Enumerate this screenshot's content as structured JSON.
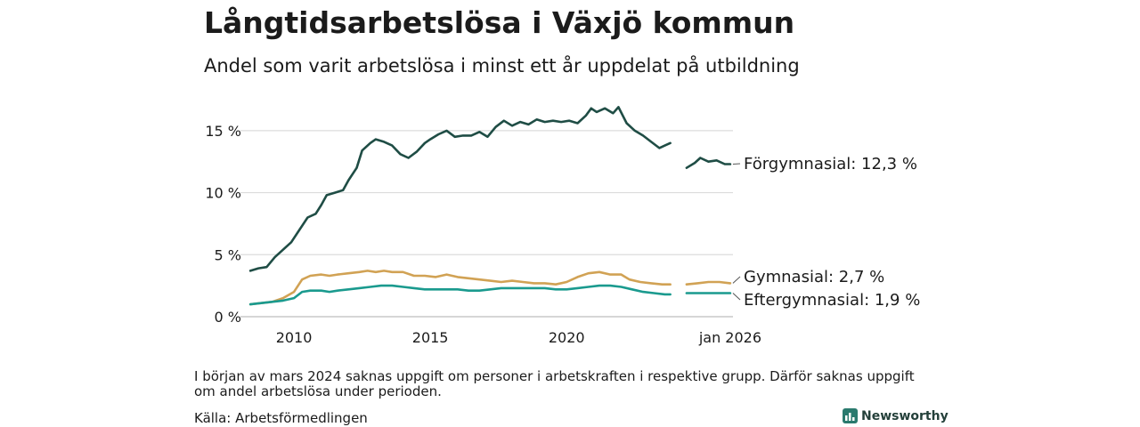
{
  "header": {
    "title": "Långtidsarbetslösa i Växjö kommun",
    "subtitle": "Andel som varit arbetslösa i minst ett år uppdelat på utbildning"
  },
  "footer": {
    "note": "I början av mars 2024 saknas uppgift om personer i arbetskraften i respektive grupp. Därför saknas uppgift om andel arbetslösa under perioden.",
    "source": "Källa: Arbetsförmedlingen",
    "brand": "Newsworthy",
    "brand_icon": "newsworthy-logo-icon"
  },
  "chart_data": {
    "type": "line",
    "title": "Långtidsarbetslösa i Växjö kommun",
    "subtitle": "Andel som varit arbetslösa i minst ett år uppdelat på utbildning",
    "xlabel": "",
    "ylabel": "",
    "xlim": [
      2008.3,
      2026.1
    ],
    "ylim": [
      0,
      17.5
    ],
    "x_ticks": [
      {
        "value": 2010,
        "label": "2010"
      },
      {
        "value": 2015,
        "label": "2015"
      },
      {
        "value": 2020,
        "label": "2020"
      },
      {
        "value": 2026.0,
        "label": "jan 2026"
      }
    ],
    "y_ticks": [
      {
        "value": 0,
        "label": "0 %"
      },
      {
        "value": 5,
        "label": "5 %"
      },
      {
        "value": 10,
        "label": "10 %"
      },
      {
        "value": 15,
        "label": "15 %"
      }
    ],
    "gap": [
      2023.85,
      2024.35
    ],
    "grid": true,
    "series": [
      {
        "name": "Förgymnasial",
        "end_label": "Förgymnasial: 12,3 %",
        "color": "#1f4d45",
        "points": [
          [
            2008.4,
            3.7
          ],
          [
            2008.7,
            3.9
          ],
          [
            2009.0,
            4.0
          ],
          [
            2009.3,
            4.8
          ],
          [
            2009.6,
            5.4
          ],
          [
            2009.9,
            6.0
          ],
          [
            2010.2,
            7.0
          ],
          [
            2010.5,
            8.0
          ],
          [
            2010.8,
            8.3
          ],
          [
            2011.0,
            9.0
          ],
          [
            2011.2,
            9.8
          ],
          [
            2011.5,
            10.0
          ],
          [
            2011.8,
            10.2
          ],
          [
            2012.0,
            11.0
          ],
          [
            2012.3,
            12.0
          ],
          [
            2012.5,
            13.4
          ],
          [
            2012.8,
            14.0
          ],
          [
            2013.0,
            14.3
          ],
          [
            2013.3,
            14.1
          ],
          [
            2013.6,
            13.8
          ],
          [
            2013.9,
            13.1
          ],
          [
            2014.2,
            12.8
          ],
          [
            2014.5,
            13.3
          ],
          [
            2014.8,
            14.0
          ],
          [
            2015.0,
            14.3
          ],
          [
            2015.3,
            14.7
          ],
          [
            2015.6,
            15.0
          ],
          [
            2015.9,
            14.5
          ],
          [
            2016.2,
            14.6
          ],
          [
            2016.5,
            14.6
          ],
          [
            2016.8,
            14.9
          ],
          [
            2017.1,
            14.5
          ],
          [
            2017.4,
            15.3
          ],
          [
            2017.7,
            15.8
          ],
          [
            2018.0,
            15.4
          ],
          [
            2018.3,
            15.7
          ],
          [
            2018.6,
            15.5
          ],
          [
            2018.9,
            15.9
          ],
          [
            2019.2,
            15.7
          ],
          [
            2019.5,
            15.8
          ],
          [
            2019.8,
            15.7
          ],
          [
            2020.1,
            15.8
          ],
          [
            2020.4,
            15.6
          ],
          [
            2020.7,
            16.2
          ],
          [
            2020.9,
            16.8
          ],
          [
            2021.1,
            16.5
          ],
          [
            2021.4,
            16.8
          ],
          [
            2021.7,
            16.4
          ],
          [
            2021.9,
            16.9
          ],
          [
            2022.2,
            15.6
          ],
          [
            2022.5,
            15.0
          ],
          [
            2022.8,
            14.6
          ],
          [
            2023.1,
            14.1
          ],
          [
            2023.4,
            13.6
          ],
          [
            2023.6,
            13.8
          ],
          [
            2023.8,
            14.0
          ],
          [
            2024.4,
            12.0
          ],
          [
            2024.7,
            12.4
          ],
          [
            2024.9,
            12.8
          ],
          [
            2025.2,
            12.5
          ],
          [
            2025.5,
            12.6
          ],
          [
            2025.8,
            12.3
          ],
          [
            2026.0,
            12.3
          ]
        ]
      },
      {
        "name": "Gymnasial",
        "end_label": "Gymnasial:  2,7 %",
        "color": "#d1a254",
        "points": [
          [
            2008.4,
            1.0
          ],
          [
            2008.8,
            1.1
          ],
          [
            2009.2,
            1.2
          ],
          [
            2009.6,
            1.5
          ],
          [
            2010.0,
            2.0
          ],
          [
            2010.3,
            3.0
          ],
          [
            2010.6,
            3.3
          ],
          [
            2011.0,
            3.4
          ],
          [
            2011.3,
            3.3
          ],
          [
            2011.6,
            3.4
          ],
          [
            2012.0,
            3.5
          ],
          [
            2012.4,
            3.6
          ],
          [
            2012.7,
            3.7
          ],
          [
            2013.0,
            3.6
          ],
          [
            2013.3,
            3.7
          ],
          [
            2013.6,
            3.6
          ],
          [
            2014.0,
            3.6
          ],
          [
            2014.4,
            3.3
          ],
          [
            2014.8,
            3.3
          ],
          [
            2015.2,
            3.2
          ],
          [
            2015.6,
            3.4
          ],
          [
            2016.0,
            3.2
          ],
          [
            2016.4,
            3.1
          ],
          [
            2016.8,
            3.0
          ],
          [
            2017.2,
            2.9
          ],
          [
            2017.6,
            2.8
          ],
          [
            2018.0,
            2.9
          ],
          [
            2018.4,
            2.8
          ],
          [
            2018.8,
            2.7
          ],
          [
            2019.2,
            2.7
          ],
          [
            2019.6,
            2.6
          ],
          [
            2020.0,
            2.8
          ],
          [
            2020.4,
            3.2
          ],
          [
            2020.8,
            3.5
          ],
          [
            2021.2,
            3.6
          ],
          [
            2021.6,
            3.4
          ],
          [
            2022.0,
            3.4
          ],
          [
            2022.3,
            3.0
          ],
          [
            2022.7,
            2.8
          ],
          [
            2023.1,
            2.7
          ],
          [
            2023.5,
            2.6
          ],
          [
            2023.8,
            2.6
          ],
          [
            2024.4,
            2.6
          ],
          [
            2024.8,
            2.7
          ],
          [
            2025.2,
            2.8
          ],
          [
            2025.6,
            2.8
          ],
          [
            2026.0,
            2.7
          ]
        ]
      },
      {
        "name": "Eftergymnasial",
        "end_label": "Eftergymnasial:  1,9 %",
        "color": "#1a9a8e",
        "points": [
          [
            2008.4,
            1.0
          ],
          [
            2008.8,
            1.1
          ],
          [
            2009.2,
            1.2
          ],
          [
            2009.6,
            1.3
          ],
          [
            2010.0,
            1.5
          ],
          [
            2010.3,
            2.0
          ],
          [
            2010.6,
            2.1
          ],
          [
            2011.0,
            2.1
          ],
          [
            2011.3,
            2.0
          ],
          [
            2011.6,
            2.1
          ],
          [
            2012.0,
            2.2
          ],
          [
            2012.4,
            2.3
          ],
          [
            2012.8,
            2.4
          ],
          [
            2013.2,
            2.5
          ],
          [
            2013.6,
            2.5
          ],
          [
            2014.0,
            2.4
          ],
          [
            2014.4,
            2.3
          ],
          [
            2014.8,
            2.2
          ],
          [
            2015.2,
            2.2
          ],
          [
            2015.6,
            2.2
          ],
          [
            2016.0,
            2.2
          ],
          [
            2016.4,
            2.1
          ],
          [
            2016.8,
            2.1
          ],
          [
            2017.2,
            2.2
          ],
          [
            2017.6,
            2.3
          ],
          [
            2018.0,
            2.3
          ],
          [
            2018.4,
            2.3
          ],
          [
            2018.8,
            2.3
          ],
          [
            2019.2,
            2.3
          ],
          [
            2019.6,
            2.2
          ],
          [
            2020.0,
            2.2
          ],
          [
            2020.4,
            2.3
          ],
          [
            2020.8,
            2.4
          ],
          [
            2021.2,
            2.5
          ],
          [
            2021.6,
            2.5
          ],
          [
            2022.0,
            2.4
          ],
          [
            2022.4,
            2.2
          ],
          [
            2022.8,
            2.0
          ],
          [
            2023.2,
            1.9
          ],
          [
            2023.6,
            1.8
          ],
          [
            2023.8,
            1.8
          ],
          [
            2024.4,
            1.9
          ],
          [
            2024.8,
            1.9
          ],
          [
            2025.2,
            1.9
          ],
          [
            2025.6,
            1.9
          ],
          [
            2026.0,
            1.9
          ]
        ]
      }
    ]
  }
}
